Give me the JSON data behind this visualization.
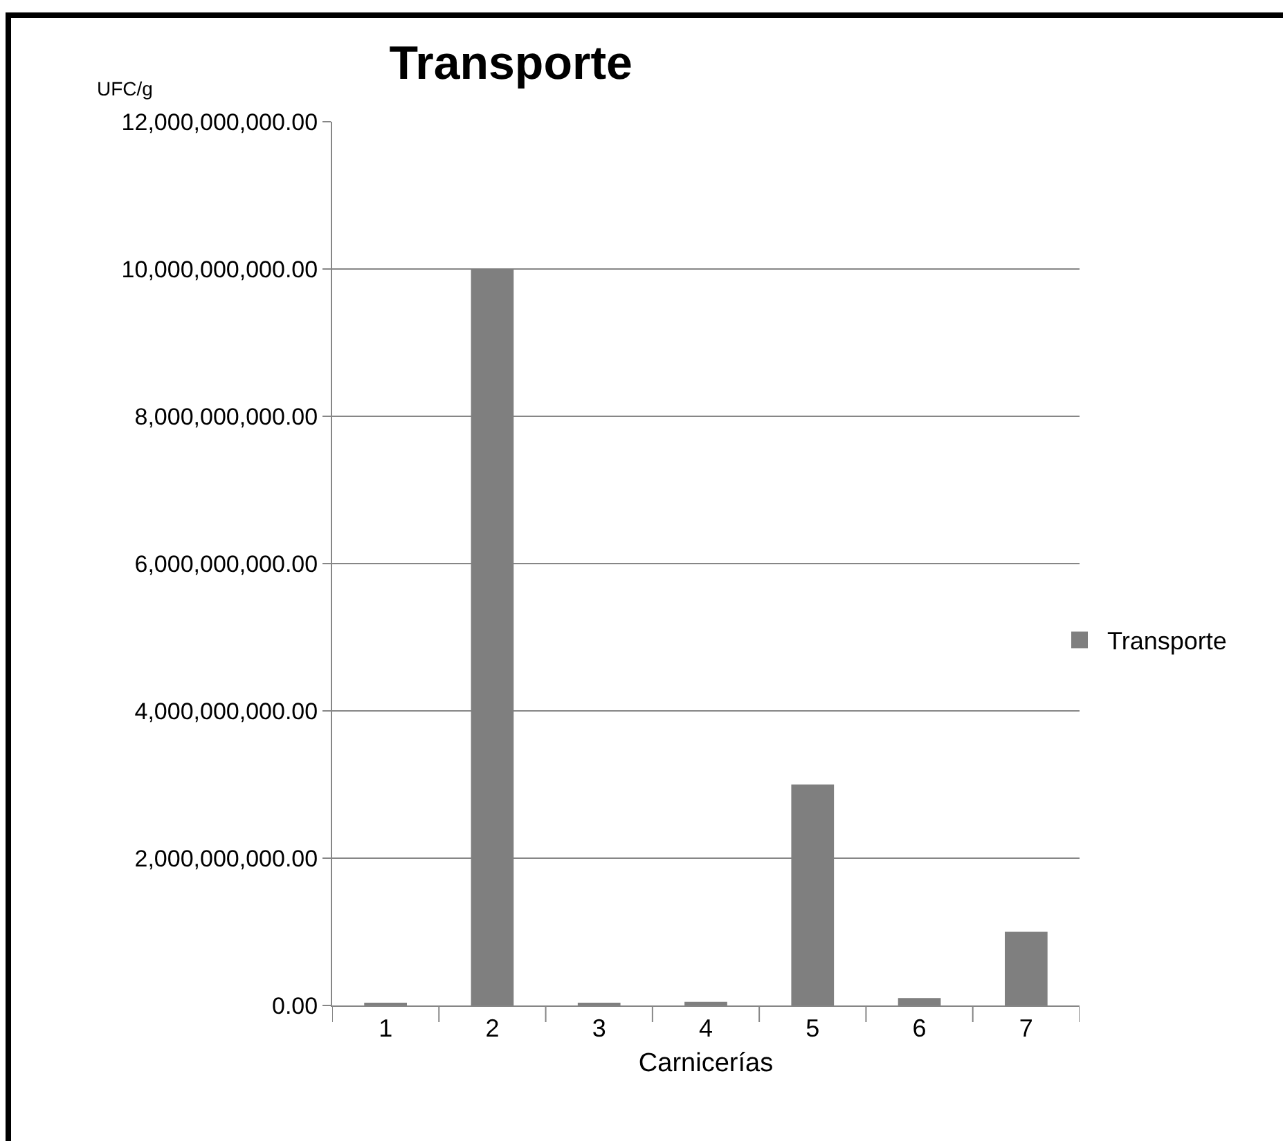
{
  "chart_data": {
    "type": "bar",
    "title": "Transporte",
    "xlabel": "Carnicerías",
    "ylabel": "UFC/g",
    "categories": [
      "1",
      "2",
      "3",
      "4",
      "5",
      "6",
      "7"
    ],
    "series": [
      {
        "name": "Transporte",
        "color": "#7f7f7f",
        "values": [
          30000000,
          10000000000,
          20000000,
          50000000,
          3000000000,
          100000000,
          1000000000
        ]
      }
    ],
    "ylim": [
      0,
      12000000000
    ],
    "yticks": [
      {
        "value": 0,
        "label": "0.00"
      },
      {
        "value": 2000000000,
        "label": "2,000,000,000.00"
      },
      {
        "value": 4000000000,
        "label": "4,000,000,000.00"
      },
      {
        "value": 6000000000,
        "label": "6,000,000,000.00"
      },
      {
        "value": 8000000000,
        "label": "8,000,000,000.00"
      },
      {
        "value": 10000000000,
        "label": "10,000,000,000.00"
      },
      {
        "value": 12000000000,
        "label": "12,000,000,000.00"
      }
    ],
    "grid": "y",
    "legend": "right"
  }
}
